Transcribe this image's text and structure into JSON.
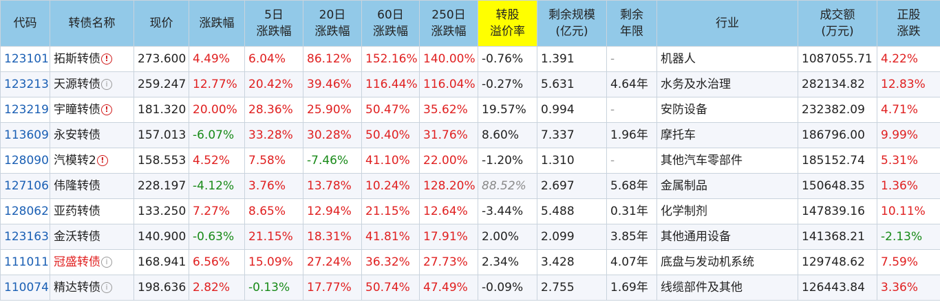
{
  "headers": [
    {
      "label": "代码",
      "lines": [
        "代码"
      ]
    },
    {
      "label": "转债名称",
      "lines": [
        "转债名称"
      ]
    },
    {
      "label": "现价",
      "lines": [
        "现价"
      ]
    },
    {
      "label": "涨跌幅",
      "lines": [
        "涨跌幅"
      ]
    },
    {
      "label": "5日涨跌幅",
      "lines": [
        "5日",
        "涨跌幅"
      ]
    },
    {
      "label": "20日涨跌幅",
      "lines": [
        "20日",
        "涨跌幅"
      ]
    },
    {
      "label": "60日涨跌幅",
      "lines": [
        "60日",
        "涨跌幅"
      ]
    },
    {
      "label": "250日涨跌幅",
      "lines": [
        "250日",
        "涨跌幅"
      ]
    },
    {
      "label": "转股溢价率",
      "lines": [
        "转股",
        "溢价率"
      ],
      "highlight": true
    },
    {
      "label": "剩余规模(亿元)",
      "lines": [
        "剩余规模",
        "(亿元)"
      ]
    },
    {
      "label": "剩余年限",
      "lines": [
        "剩余",
        "年限"
      ]
    },
    {
      "label": "行业",
      "lines": [
        "行业"
      ]
    },
    {
      "label": "成交额(万元)",
      "lines": [
        "成交额",
        "(万元)"
      ]
    },
    {
      "label": "正股涨跌",
      "lines": [
        "正股",
        "涨跌"
      ]
    }
  ],
  "colors": {
    "up": "#e02020",
    "down": "#188a18",
    "header": "#92c9e8",
    "highlight": "#ffff00",
    "code": "#1a5fb4"
  },
  "rows": [
    {
      "code": "123101",
      "name": "拓斯转债",
      "icon": "warning",
      "name_red": false,
      "price": "273.600",
      "chg": "4.49%",
      "chg5": "6.04%",
      "chg20": "86.12%",
      "chg60": "152.16%",
      "chg250": "140.00%",
      "premium": "-0.76%",
      "premium_style": "normal",
      "scale": "1.391",
      "years": "-",
      "industry": "机器人",
      "volume": "1087055.71",
      "stock_chg": "4.22%"
    },
    {
      "code": "123213",
      "name": "天源转债",
      "icon": "info",
      "name_red": false,
      "price": "259.247",
      "chg": "12.77%",
      "chg5": "20.42%",
      "chg20": "39.46%",
      "chg60": "116.44%",
      "chg250": "116.04%",
      "premium": "-0.27%",
      "premium_style": "normal",
      "scale": "5.631",
      "years": "4.64年",
      "industry": "水务及水治理",
      "volume": "282134.82",
      "stock_chg": "12.83%"
    },
    {
      "code": "123219",
      "name": "宇瞳转债",
      "icon": "warning",
      "name_red": false,
      "price": "181.320",
      "chg": "20.00%",
      "chg5": "28.36%",
      "chg20": "25.90%",
      "chg60": "50.47%",
      "chg250": "35.62%",
      "premium": "19.57%",
      "premium_style": "normal",
      "scale": "0.994",
      "years": "-",
      "industry": "安防设备",
      "volume": "232382.09",
      "stock_chg": "4.71%"
    },
    {
      "code": "113609",
      "name": "永安转债",
      "icon": "",
      "name_red": false,
      "price": "157.013",
      "chg": "-6.07%",
      "chg5": "33.28%",
      "chg20": "30.28%",
      "chg60": "50.40%",
      "chg250": "31.76%",
      "premium": "8.60%",
      "premium_style": "normal",
      "scale": "7.337",
      "years": "1.96年",
      "industry": "摩托车",
      "volume": "186796.00",
      "stock_chg": "9.99%"
    },
    {
      "code": "128090",
      "name": "汽模转2",
      "icon": "warning",
      "name_red": false,
      "price": "158.553",
      "chg": "4.52%",
      "chg5": "7.58%",
      "chg20": "-7.46%",
      "chg60": "41.10%",
      "chg250": "22.00%",
      "premium": "-1.20%",
      "premium_style": "normal",
      "scale": "1.310",
      "years": "-",
      "industry": "其他汽车零部件",
      "volume": "185152.74",
      "stock_chg": "5.31%"
    },
    {
      "code": "127106",
      "name": "伟隆转债",
      "icon": "",
      "name_red": false,
      "price": "228.197",
      "chg": "-4.12%",
      "chg5": "3.76%",
      "chg20": "13.78%",
      "chg60": "10.24%",
      "chg250": "128.20%",
      "premium": "88.52%",
      "premium_style": "gray-italic",
      "scale": "2.697",
      "years": "5.68年",
      "industry": "金属制品",
      "volume": "150648.35",
      "stock_chg": "1.36%"
    },
    {
      "code": "128062",
      "name": "亚药转债",
      "icon": "",
      "name_red": false,
      "price": "133.250",
      "chg": "7.27%",
      "chg5": "8.65%",
      "chg20": "12.94%",
      "chg60": "21.15%",
      "chg250": "12.64%",
      "premium": "-3.44%",
      "premium_style": "normal",
      "scale": "5.488",
      "years": "0.31年",
      "industry": "化学制剂",
      "volume": "147839.16",
      "stock_chg": "10.11%"
    },
    {
      "code": "123163",
      "name": "金沃转债",
      "icon": "",
      "name_red": false,
      "price": "140.900",
      "chg": "-0.63%",
      "chg5": "21.15%",
      "chg20": "18.31%",
      "chg60": "41.81%",
      "chg250": "17.91%",
      "premium": "2.00%",
      "premium_style": "normal",
      "scale": "2.099",
      "years": "3.85年",
      "industry": "其他通用设备",
      "volume": "141368.21",
      "stock_chg": "-2.13%"
    },
    {
      "code": "111011",
      "name": "冠盛转债",
      "icon": "info",
      "name_red": true,
      "price": "168.941",
      "chg": "6.56%",
      "chg5": "15.09%",
      "chg20": "27.24%",
      "chg60": "36.32%",
      "chg250": "27.73%",
      "premium": "2.34%",
      "premium_style": "normal",
      "scale": "3.428",
      "years": "4.07年",
      "industry": "底盘与发动机系统",
      "volume": "129748.62",
      "stock_chg": "7.59%"
    },
    {
      "code": "110074",
      "name": "精达转债",
      "icon": "info",
      "name_red": false,
      "price": "198.636",
      "chg": "2.82%",
      "chg5": "-0.13%",
      "chg20": "17.77%",
      "chg60": "50.74%",
      "chg250": "47.49%",
      "premium": "-0.09%",
      "premium_style": "normal",
      "scale": "2.755",
      "years": "1.69年",
      "industry": "线缆部件及其他",
      "volume": "126443.84",
      "stock_chg": "3.36%"
    }
  ],
  "icons": {
    "warning": "warning-circle-icon",
    "info": "info-circle-icon"
  },
  "glyphs": {
    "warning": "!",
    "info": "i"
  }
}
